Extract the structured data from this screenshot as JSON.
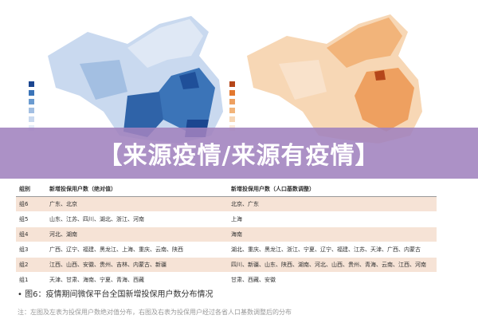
{
  "banner": {
    "text": "【来源疫情/来源有疫情】"
  },
  "table": {
    "headers": [
      "组别",
      "新增投保用户数（绝对值）",
      "新增投保用户数（人口基数调整）"
    ],
    "rows": [
      [
        "组6",
        "广东、北京",
        "北京、广东"
      ],
      [
        "组5",
        "山东、江苏、四川、湖北、浙江、河南",
        "上海"
      ],
      [
        "组4",
        "河北、湖南",
        "海南"
      ],
      [
        "组3",
        "广西、辽宁、福建、黑龙江、上海、重庆、云南、陕西",
        "湖北、重庆、黑龙江、浙江、宁夏、辽宁、福建、江苏、天津、广西、内蒙古"
      ],
      [
        "组2",
        "江西、山西、安徽、贵州、吉林、内蒙古、新疆",
        "四川、新疆、山东、陕西、湖南、河北、山西、贵州、青海、云南、江西、河南"
      ],
      [
        "组1",
        "天津、甘肃、海南、宁夏、青海、西藏",
        "甘肃、西藏、安徽"
      ]
    ]
  },
  "caption": "•  图6：疫情期间微保平台全国新增投保用户数分布情况",
  "note": "注：左图及左表为投保用户数绝对值分布，右图及右表为投保用户经过各省人口基数调整后的分布"
}
